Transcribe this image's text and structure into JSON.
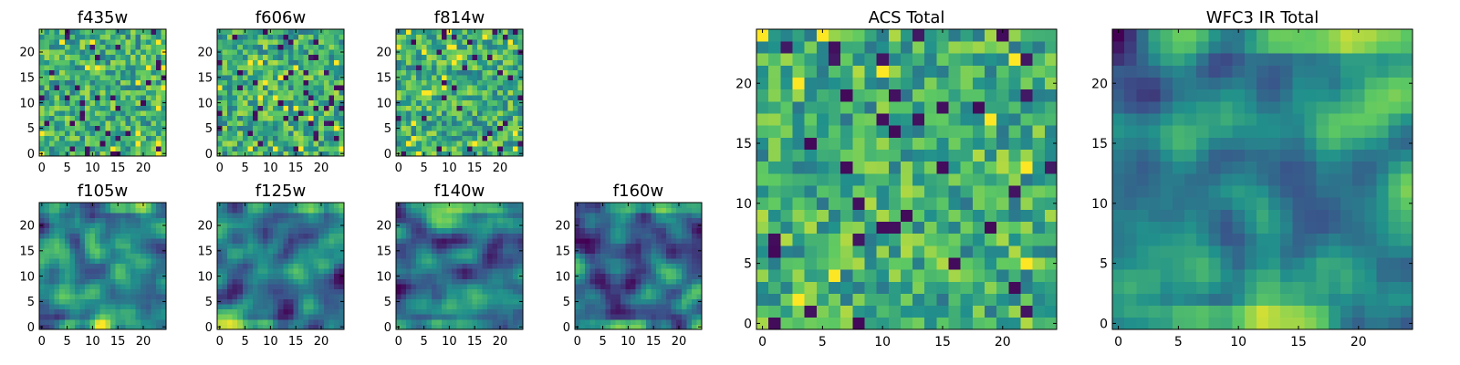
{
  "figure": {
    "colormap": "viridis",
    "colormap_stops": [
      "#440154",
      "#3b528b",
      "#21918c",
      "#5ec962",
      "#fde725"
    ]
  },
  "chart_data": [
    {
      "type": "heatmap",
      "title": "f435w",
      "nx": 25,
      "ny": 25,
      "xlim": [
        -0.5,
        24.5
      ],
      "ylim": [
        -0.5,
        24.5
      ],
      "xticks": [
        0,
        5,
        10,
        15,
        20
      ],
      "yticks": [
        0,
        5,
        10,
        15,
        20
      ],
      "pattern": "noise",
      "seed": 11
    },
    {
      "type": "heatmap",
      "title": "f606w",
      "nx": 25,
      "ny": 25,
      "xlim": [
        -0.5,
        24.5
      ],
      "ylim": [
        -0.5,
        24.5
      ],
      "xticks": [
        0,
        5,
        10,
        15,
        20
      ],
      "yticks": [
        0,
        5,
        10,
        15,
        20
      ],
      "pattern": "noise",
      "seed": 23
    },
    {
      "type": "heatmap",
      "title": "f814w",
      "nx": 25,
      "ny": 25,
      "xlim": [
        -0.5,
        24.5
      ],
      "ylim": [
        -0.5,
        24.5
      ],
      "xticks": [
        0,
        5,
        10,
        15,
        20
      ],
      "yticks": [
        0,
        5,
        10,
        15,
        20
      ],
      "pattern": "noise",
      "seed": 37
    },
    {
      "type": "heatmap",
      "title": "f105w",
      "nx": 25,
      "ny": 25,
      "xlim": [
        -0.5,
        24.5
      ],
      "ylim": [
        -0.5,
        24.5
      ],
      "xticks": [
        0,
        5,
        10,
        15,
        20
      ],
      "yticks": [
        0,
        5,
        10,
        15,
        20
      ],
      "pattern": "smooth",
      "seed": 41
    },
    {
      "type": "heatmap",
      "title": "f125w",
      "nx": 25,
      "ny": 25,
      "xlim": [
        -0.5,
        24.5
      ],
      "ylim": [
        -0.5,
        24.5
      ],
      "xticks": [
        0,
        5,
        10,
        15,
        20
      ],
      "yticks": [
        0,
        5,
        10,
        15,
        20
      ],
      "pattern": "smooth",
      "seed": 53
    },
    {
      "type": "heatmap",
      "title": "f140w",
      "nx": 25,
      "ny": 25,
      "xlim": [
        -0.5,
        24.5
      ],
      "ylim": [
        -0.5,
        24.5
      ],
      "xticks": [
        0,
        5,
        10,
        15,
        20
      ],
      "yticks": [
        0,
        5,
        10,
        15,
        20
      ],
      "pattern": "smooth",
      "seed": 67
    },
    {
      "type": "heatmap",
      "title": "f160w",
      "nx": 25,
      "ny": 25,
      "xlim": [
        -0.5,
        24.5
      ],
      "ylim": [
        -0.5,
        24.5
      ],
      "xticks": [
        0,
        5,
        10,
        15,
        20
      ],
      "yticks": [
        0,
        5,
        10,
        15,
        20
      ],
      "pattern": "smooth",
      "seed": 79
    },
    {
      "type": "heatmap",
      "title": "ACS Total",
      "nx": 25,
      "ny": 25,
      "xlim": [
        -0.5,
        24.5
      ],
      "ylim": [
        -0.5,
        24.5
      ],
      "xticks": [
        0,
        5,
        10,
        15,
        20
      ],
      "yticks": [
        0,
        5,
        10,
        15,
        20
      ],
      "pattern": "noise",
      "seed": 97
    },
    {
      "type": "heatmap",
      "title": "WFC3 IR Total",
      "nx": 25,
      "ny": 25,
      "xlim": [
        -0.5,
        24.5
      ],
      "ylim": [
        -0.5,
        24.5
      ],
      "xticks": [
        0,
        5,
        10,
        15,
        20
      ],
      "yticks": [
        0,
        5,
        10,
        15,
        20
      ],
      "pattern": "smooth",
      "seed": 101
    }
  ]
}
